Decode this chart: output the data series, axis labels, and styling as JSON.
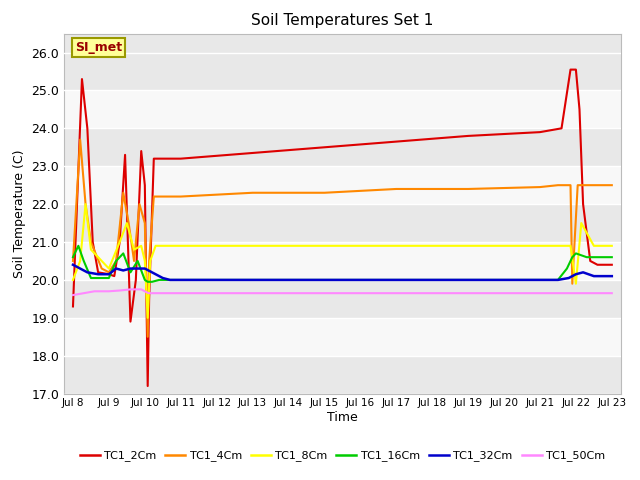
{
  "title": "Soil Temperatures Set 1",
  "ylabel": "Soil Temperature (C)",
  "xlabel": "Time",
  "annotation_text": "SI_met",
  "ylim": [
    17.0,
    26.5
  ],
  "yticks": [
    17.0,
    18.0,
    19.0,
    20.0,
    21.0,
    22.0,
    23.0,
    24.0,
    25.0,
    26.0
  ],
  "bg_color": "#e8e8e8",
  "band_color1": "#e8e8e8",
  "band_color2": "#f8f8f8",
  "series": {
    "TC1_2Cm": {
      "color": "#dd0000",
      "lw": 1.5,
      "points": [
        [
          8.0,
          19.3
        ],
        [
          8.25,
          25.3
        ],
        [
          8.4,
          24.0
        ],
        [
          8.55,
          21.0
        ],
        [
          8.7,
          20.2
        ],
        [
          9.0,
          20.15
        ],
        [
          9.15,
          20.1
        ],
        [
          9.3,
          21.0
        ],
        [
          9.45,
          23.3
        ],
        [
          9.6,
          18.9
        ],
        [
          9.75,
          20.0
        ],
        [
          9.9,
          23.4
        ],
        [
          10.0,
          22.5
        ],
        [
          10.08,
          17.2
        ],
        [
          10.12,
          19.5
        ],
        [
          10.25,
          23.2
        ],
        [
          10.5,
          23.2
        ],
        [
          11.0,
          23.2
        ],
        [
          13.0,
          23.35
        ],
        [
          15.0,
          23.5
        ],
        [
          17.0,
          23.65
        ],
        [
          19.0,
          23.8
        ],
        [
          21.0,
          23.9
        ],
        [
          21.6,
          24.0
        ],
        [
          21.85,
          25.55
        ],
        [
          22.0,
          25.55
        ],
        [
          22.1,
          24.5
        ],
        [
          22.2,
          22.0
        ],
        [
          22.4,
          20.5
        ],
        [
          22.6,
          20.4
        ],
        [
          23.0,
          20.4
        ]
      ]
    },
    "TC1_4Cm": {
      "color": "#ff8800",
      "lw": 1.5,
      "points": [
        [
          8.0,
          20.5
        ],
        [
          8.2,
          23.7
        ],
        [
          8.35,
          22.0
        ],
        [
          8.5,
          21.0
        ],
        [
          8.8,
          20.3
        ],
        [
          9.0,
          20.2
        ],
        [
          9.2,
          20.5
        ],
        [
          9.4,
          22.3
        ],
        [
          9.55,
          21.5
        ],
        [
          9.7,
          20.5
        ],
        [
          9.85,
          22.0
        ],
        [
          10.0,
          21.5
        ],
        [
          10.08,
          18.5
        ],
        [
          10.12,
          20.5
        ],
        [
          10.25,
          22.2
        ],
        [
          10.5,
          22.2
        ],
        [
          11.0,
          22.2
        ],
        [
          13.0,
          22.3
        ],
        [
          15.0,
          22.3
        ],
        [
          17.0,
          22.4
        ],
        [
          19.0,
          22.4
        ],
        [
          21.0,
          22.45
        ],
        [
          21.5,
          22.5
        ],
        [
          21.85,
          22.5
        ],
        [
          21.9,
          19.9
        ],
        [
          22.05,
          22.5
        ],
        [
          22.5,
          22.5
        ],
        [
          23.0,
          22.5
        ]
      ]
    },
    "TC1_8Cm": {
      "color": "#ffff00",
      "lw": 1.5,
      "points": [
        [
          8.0,
          20.0
        ],
        [
          8.2,
          20.5
        ],
        [
          8.35,
          22.0
        ],
        [
          8.5,
          20.8
        ],
        [
          9.0,
          20.3
        ],
        [
          9.3,
          21.0
        ],
        [
          9.5,
          21.5
        ],
        [
          9.7,
          20.8
        ],
        [
          9.9,
          20.9
        ],
        [
          10.0,
          20.5
        ],
        [
          10.08,
          19.0
        ],
        [
          10.15,
          20.5
        ],
        [
          10.3,
          20.9
        ],
        [
          10.5,
          20.9
        ],
        [
          11.0,
          20.9
        ],
        [
          13.0,
          20.9
        ],
        [
          15.0,
          20.9
        ],
        [
          17.0,
          20.9
        ],
        [
          19.0,
          20.9
        ],
        [
          21.0,
          20.9
        ],
        [
          21.7,
          20.9
        ],
        [
          21.85,
          20.9
        ],
        [
          22.0,
          19.9
        ],
        [
          22.15,
          21.5
        ],
        [
          22.5,
          20.9
        ],
        [
          23.0,
          20.9
        ]
      ]
    },
    "TC1_16Cm": {
      "color": "#00cc00",
      "lw": 1.5,
      "points": [
        [
          8.0,
          20.6
        ],
        [
          8.15,
          20.9
        ],
        [
          8.3,
          20.5
        ],
        [
          8.5,
          20.05
        ],
        [
          9.0,
          20.05
        ],
        [
          9.2,
          20.5
        ],
        [
          9.4,
          20.7
        ],
        [
          9.6,
          20.2
        ],
        [
          9.8,
          20.5
        ],
        [
          10.0,
          20.0
        ],
        [
          10.08,
          19.95
        ],
        [
          10.2,
          19.95
        ],
        [
          10.4,
          20.0
        ],
        [
          10.6,
          20.0
        ],
        [
          11.0,
          20.0
        ],
        [
          13.0,
          20.0
        ],
        [
          15.0,
          20.0
        ],
        [
          17.0,
          20.0
        ],
        [
          19.0,
          20.0
        ],
        [
          21.0,
          20.0
        ],
        [
          21.5,
          20.0
        ],
        [
          21.75,
          20.3
        ],
        [
          21.9,
          20.6
        ],
        [
          22.0,
          20.7
        ],
        [
          22.3,
          20.6
        ],
        [
          22.5,
          20.6
        ],
        [
          23.0,
          20.6
        ]
      ]
    },
    "TC1_32Cm": {
      "color": "#0000cc",
      "lw": 1.8,
      "points": [
        [
          8.0,
          20.4
        ],
        [
          8.2,
          20.3
        ],
        [
          8.4,
          20.2
        ],
        [
          8.7,
          20.15
        ],
        [
          9.0,
          20.15
        ],
        [
          9.2,
          20.3
        ],
        [
          9.4,
          20.25
        ],
        [
          9.6,
          20.3
        ],
        [
          9.8,
          20.3
        ],
        [
          10.0,
          20.3
        ],
        [
          10.2,
          20.2
        ],
        [
          10.4,
          20.1
        ],
        [
          10.5,
          20.05
        ],
        [
          10.7,
          20.0
        ],
        [
          11.0,
          20.0
        ],
        [
          13.0,
          20.0
        ],
        [
          15.0,
          20.0
        ],
        [
          17.0,
          20.0
        ],
        [
          19.0,
          20.0
        ],
        [
          21.0,
          20.0
        ],
        [
          21.5,
          20.0
        ],
        [
          21.8,
          20.05
        ],
        [
          22.0,
          20.15
        ],
        [
          22.2,
          20.2
        ],
        [
          22.5,
          20.1
        ],
        [
          23.0,
          20.1
        ]
      ]
    },
    "TC1_50Cm": {
      "color": "#ff88ff",
      "lw": 1.5,
      "points": [
        [
          8.0,
          19.6
        ],
        [
          8.3,
          19.65
        ],
        [
          8.6,
          19.7
        ],
        [
          9.0,
          19.7
        ],
        [
          9.3,
          19.72
        ],
        [
          9.6,
          19.75
        ],
        [
          9.9,
          19.75
        ],
        [
          10.0,
          19.7
        ],
        [
          10.1,
          19.65
        ],
        [
          10.3,
          19.65
        ],
        [
          10.5,
          19.65
        ],
        [
          11.0,
          19.65
        ],
        [
          13.0,
          19.65
        ],
        [
          15.0,
          19.65
        ],
        [
          17.0,
          19.65
        ],
        [
          19.0,
          19.65
        ],
        [
          21.0,
          19.65
        ],
        [
          21.5,
          19.65
        ],
        [
          21.8,
          19.65
        ],
        [
          22.0,
          19.65
        ],
        [
          22.5,
          19.65
        ],
        [
          23.0,
          19.65
        ]
      ]
    }
  },
  "legend_entries": [
    "TC1_2Cm",
    "TC1_4Cm",
    "TC1_8Cm",
    "TC1_16Cm",
    "TC1_32Cm",
    "TC1_50Cm"
  ]
}
